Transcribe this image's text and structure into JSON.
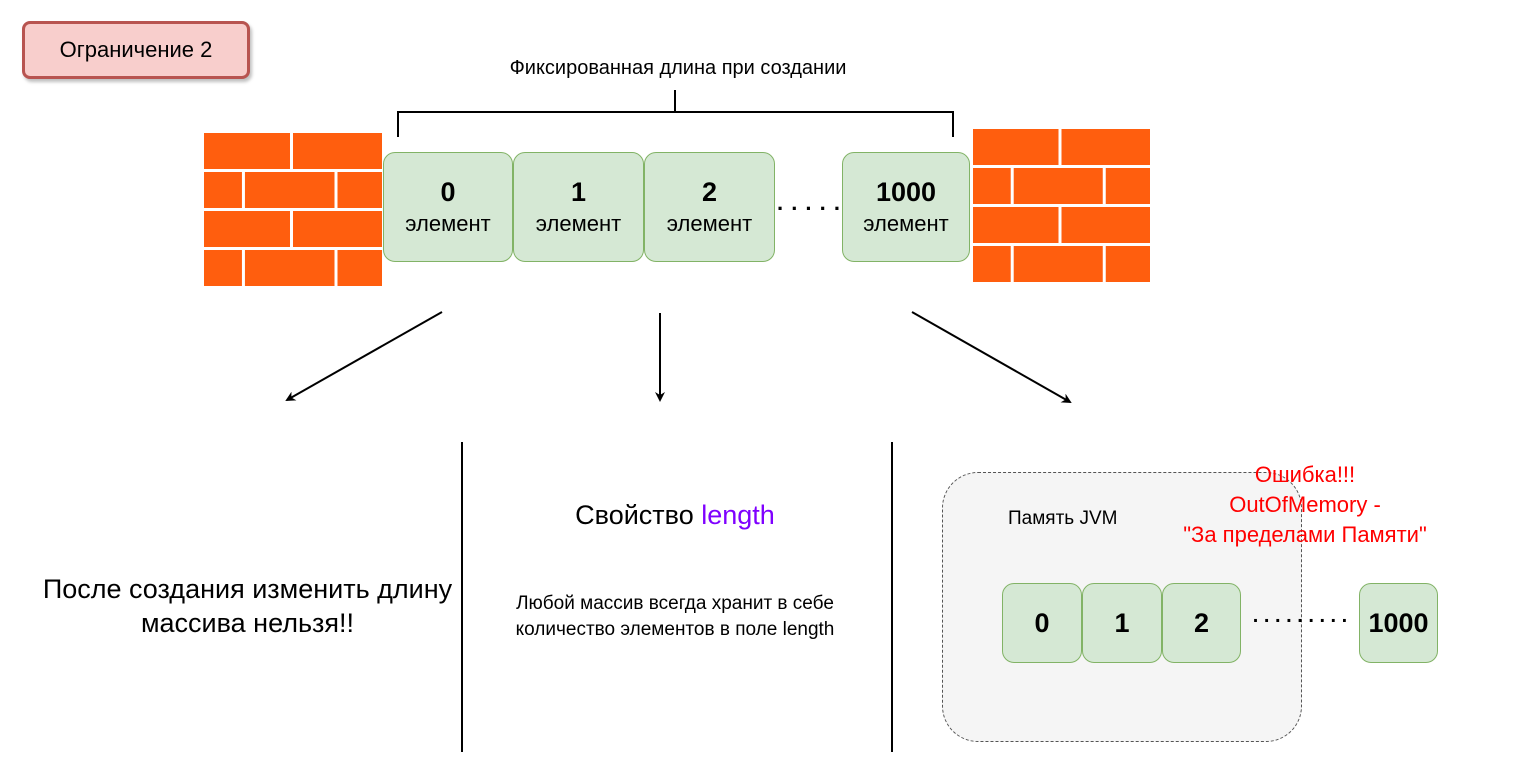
{
  "tag": {
    "label": "Ограничение 2"
  },
  "bracket_label": "Фиксированная длина при создании",
  "cells": [
    {
      "num": "0",
      "label": "элемент"
    },
    {
      "num": "1",
      "label": "элемент"
    },
    {
      "num": "2",
      "label": "элемент"
    },
    {
      "num": "1000",
      "label": "элемент"
    }
  ],
  "ellipsis": ". . . . .",
  "left_text": "После создания изменить длину массива нельзя!!",
  "middle": {
    "title_prefix": "Свойство ",
    "title_keyword": "length",
    "keyword_color": "#7f00ff",
    "body": "Любой массив всегда хранит в себе количество элементов в поле length"
  },
  "right": {
    "memory_label": "Память JVM",
    "memory_cells": [
      "0",
      "1",
      "2",
      "1000"
    ],
    "ellipsis": ". . . . . . . . .",
    "error_lines": [
      "Ошибка!!!",
      "OutOfMemory -",
      "\"За пределами Памяти\""
    ],
    "error_color": "#ff0000"
  },
  "colors": {
    "brick": "#ff5e0e",
    "cell_fill": "#d5e8d4",
    "cell_border": "#82b366",
    "tag_fill": "#f8cecc",
    "tag_border": "#b85450"
  }
}
